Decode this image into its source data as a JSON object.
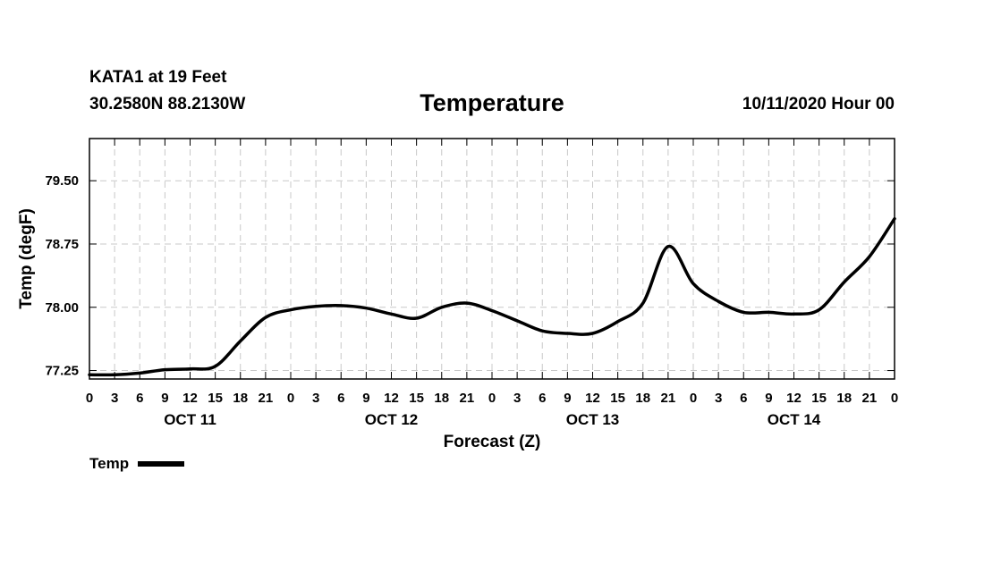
{
  "header": {
    "station": "KATA1 at 19 Feet",
    "coordinates": "30.2580N 88.2130W",
    "title": "Temperature",
    "run": "10/11/2020 Hour 00"
  },
  "legend": {
    "label": "Temp"
  },
  "chart_data": {
    "type": "line",
    "title": "Temperature",
    "xlabel": "Forecast (Z)",
    "ylabel": "Temp (degF)",
    "ylim": [
      77.15,
      80.0
    ],
    "yticks": [
      77.25,
      78.0,
      78.75,
      79.5
    ],
    "ytick_labels": [
      "77.25",
      "78.00",
      "78.75",
      "79.50"
    ],
    "xlim": [
      0,
      96
    ],
    "xtick_step_hours": 3,
    "xtick_labels": [
      "0",
      "3",
      "6",
      "9",
      "12",
      "15",
      "18",
      "21",
      "0",
      "3",
      "6",
      "9",
      "12",
      "15",
      "18",
      "21",
      "0",
      "3",
      "6",
      "9",
      "12",
      "15",
      "18",
      "21",
      "0",
      "3",
      "6",
      "9",
      "12",
      "15",
      "18",
      "21",
      "0"
    ],
    "day_labels": [
      {
        "hour": 12,
        "label": "OCT 11"
      },
      {
        "hour": 36,
        "label": "OCT 12"
      },
      {
        "hour": 60,
        "label": "OCT 13"
      },
      {
        "hour": 84,
        "label": "OCT 14"
      }
    ],
    "grid": true,
    "series": [
      {
        "name": "Temp",
        "color": "#000000",
        "x": [
          0,
          3,
          6,
          9,
          12,
          15,
          18,
          21,
          24,
          27,
          30,
          33,
          36,
          39,
          42,
          45,
          48,
          51,
          54,
          57,
          60,
          63,
          66,
          69,
          72,
          75,
          78,
          81,
          84,
          87,
          90,
          93,
          96
        ],
        "y": [
          77.2,
          77.2,
          77.22,
          77.26,
          77.27,
          77.3,
          77.6,
          77.88,
          77.97,
          78.01,
          78.02,
          77.99,
          77.92,
          77.87,
          78.0,
          78.05,
          77.96,
          77.84,
          77.72,
          77.69,
          77.69,
          77.83,
          78.05,
          78.72,
          78.28,
          78.07,
          77.94,
          77.94,
          77.92,
          77.97,
          78.3,
          78.6,
          79.05
        ]
      }
    ]
  }
}
